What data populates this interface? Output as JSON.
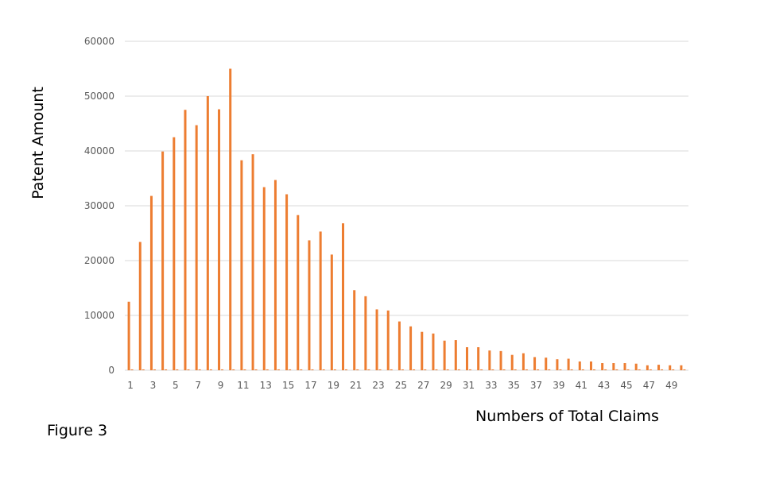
{
  "figure_caption": "Figure 3",
  "colors": {
    "bar": "#ed7d31",
    "grid": "#d9d9d9",
    "tick_text": "#595959"
  },
  "chart_data": {
    "type": "bar",
    "title": "",
    "xlabel": "Numbers of Total Claims",
    "ylabel": "Patent Amount",
    "ylim": [
      0,
      60000
    ],
    "yticks": [
      0,
      10000,
      20000,
      30000,
      40000,
      50000,
      60000
    ],
    "grid": true,
    "legend": "none",
    "categories": [
      1,
      2,
      3,
      4,
      5,
      6,
      7,
      8,
      9,
      10,
      11,
      12,
      13,
      14,
      15,
      16,
      17,
      18,
      19,
      20,
      21,
      22,
      23,
      24,
      25,
      26,
      27,
      28,
      29,
      30,
      31,
      32,
      33,
      34,
      35,
      36,
      37,
      38,
      39,
      40,
      41,
      42,
      43,
      44,
      45,
      46,
      47,
      48,
      49,
      50
    ],
    "category_tick_labels": [
      "1",
      "3",
      "5",
      "7",
      "9",
      "11",
      "13",
      "15",
      "17",
      "19",
      "21",
      "23",
      "25",
      "27",
      "29",
      "31",
      "33",
      "35",
      "37",
      "39",
      "41",
      "43",
      "45",
      "47",
      "49"
    ],
    "series": [
      {
        "values": [
          12500,
          23400,
          31800,
          39900,
          42500,
          47500,
          44700,
          50000,
          47600,
          55000,
          38300,
          39400,
          33400,
          34700,
          32100,
          28300,
          23700,
          25300,
          21100,
          26800,
          14600,
          13500,
          11100,
          10900,
          8900,
          8000,
          7000,
          6700,
          5400,
          5500,
          4200,
          4200,
          3600,
          3500,
          2800,
          3100,
          2400,
          2300,
          2000,
          2100,
          1600,
          1600,
          1300,
          1300,
          1300,
          1200,
          900,
          1000,
          900,
          900
        ]
      },
      {
        "values": [
          150,
          150,
          150,
          150,
          150,
          150,
          150,
          150,
          150,
          150,
          150,
          150,
          150,
          150,
          150,
          150,
          150,
          150,
          150,
          150,
          150,
          150,
          150,
          150,
          150,
          150,
          150,
          150,
          150,
          150,
          150,
          150,
          150,
          150,
          150,
          150,
          150,
          150,
          150,
          150,
          150,
          150,
          150,
          150,
          150,
          150,
          150,
          150,
          150,
          150
        ]
      }
    ]
  }
}
